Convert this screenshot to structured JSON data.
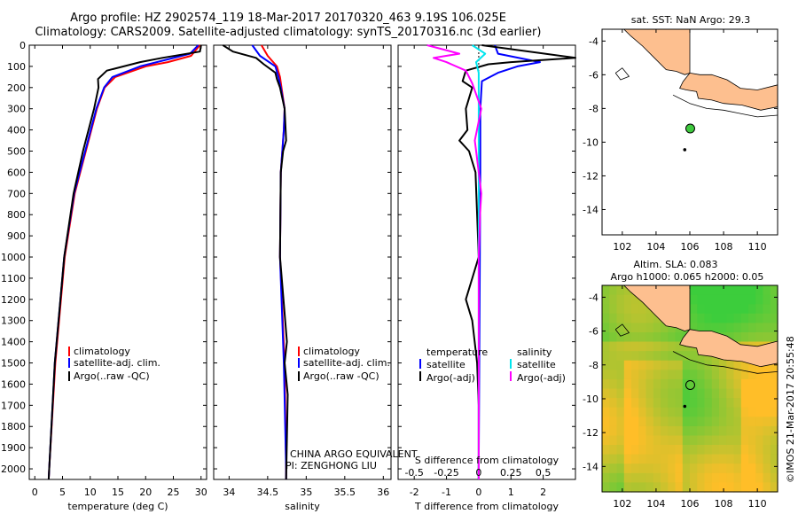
{
  "title": {
    "line1": "Argo profile: HZ 2902574_119 18-Mar-2017 20170320_463 9.19S 106.025E",
    "line2": "Climatology: CARS2009. Satellite-adjusted climatology: synTS_20170316.nc (3d earlier)"
  },
  "side_label": "©IMOS 21-Mar-2017 20:55:48",
  "colors": {
    "climatology": "#ff0000",
    "satellite": "#0000ff",
    "argo": "#000000",
    "sat_salinity": "#00e5ee",
    "argo_salinity": "#ff00ff",
    "land": "#fdbf8f",
    "argo_marker": "#3ec93e"
  },
  "chart_data": [
    {
      "type": "line",
      "xlabel": "temperature (deg C)",
      "ylim": [
        2050,
        0
      ],
      "xlim": [
        -1,
        31
      ],
      "yticks": [
        0,
        100,
        200,
        300,
        400,
        500,
        600,
        700,
        800,
        900,
        1000,
        1100,
        1200,
        1300,
        1400,
        1500,
        1600,
        1700,
        1800,
        1900,
        2000
      ],
      "xticks": [
        0,
        5,
        10,
        15,
        20,
        25,
        30
      ],
      "legend": [
        "climatology",
        "satellite-adj. clim.",
        "Argo(..raw -QC)"
      ],
      "series": [
        {
          "name": "climatology",
          "depth": [
            0,
            50,
            80,
            100,
            150,
            200,
            300,
            500,
            700,
            1000,
            1500,
            2000,
            2050
          ],
          "values": [
            29.8,
            28.2,
            24,
            20,
            14.5,
            12.6,
            11.2,
            9.2,
            7.2,
            5.4,
            3.7,
            2.6,
            2.5
          ]
        },
        {
          "name": "satellite-adj. clim.",
          "depth": [
            0,
            40,
            80,
            100,
            150,
            200,
            300,
            500,
            700,
            1000,
            1500,
            2000,
            2050
          ],
          "values": [
            29.5,
            28,
            22,
            19,
            14,
            12.5,
            11.1,
            9.1,
            7.1,
            5.3,
            3.6,
            2.6,
            2.5
          ]
        },
        {
          "name": "Argo(..raw -QC)",
          "depth": [
            0,
            30,
            60,
            80,
            120,
            160,
            200,
            300,
            500,
            700,
            1000,
            1500,
            2000,
            2050
          ],
          "values": [
            30,
            29.8,
            23,
            19,
            13,
            11.4,
            11.5,
            10.7,
            8.7,
            7,
            5.3,
            3.6,
            2.6,
            2.5
          ]
        }
      ]
    },
    {
      "type": "line",
      "xlabel": "salinity",
      "ylim": [
        2050,
        0
      ],
      "xlim": [
        33.8,
        36.1
      ],
      "xticks": [
        34,
        34.5,
        35,
        35.5,
        36
      ],
      "legend": [
        "climatology",
        "satellite-adj. clim.",
        "Argo(..raw -QC)"
      ],
      "annotation": [
        "CHINA ARGO EQUIVALENT",
        "PI: ZENGHONG LIU"
      ],
      "series": [
        {
          "name": "climatology",
          "depth": [
            0,
            50,
            100,
            150,
            200,
            300,
            400,
            600,
            1000,
            1500,
            2000,
            2050
          ],
          "values": [
            34.42,
            34.5,
            34.62,
            34.66,
            34.68,
            34.72,
            34.71,
            34.67,
            34.66,
            34.72,
            34.74,
            34.74
          ]
        },
        {
          "name": "satellite-adj. clim.",
          "depth": [
            0,
            50,
            100,
            150,
            200,
            300,
            400,
            600,
            1000,
            1500,
            2000,
            2050
          ],
          "values": [
            34.3,
            34.4,
            34.6,
            34.64,
            34.67,
            34.72,
            34.71,
            34.67,
            34.66,
            34.71,
            34.74,
            34.74
          ]
        },
        {
          "name": "Argo(..raw -QC)",
          "depth": [
            0,
            30,
            60,
            90,
            130,
            160,
            200,
            300,
            450,
            500,
            600,
            1000,
            1400,
            1500,
            1650,
            2050
          ],
          "values": [
            33.92,
            34.05,
            34.35,
            34.45,
            34.6,
            34.62,
            34.66,
            34.72,
            34.74,
            34.7,
            34.67,
            34.66,
            34.75,
            34.72,
            34.76,
            34.74
          ]
        }
      ]
    },
    {
      "type": "line",
      "xlabel": "T difference from climatology",
      "xlabel_top": "S difference from climatology",
      "ylim": [
        2050,
        0
      ],
      "xlim": [
        -2.5,
        3
      ],
      "xticks": [
        -2,
        -1,
        0,
        1,
        2
      ],
      "xticks_top": [
        "-0.5",
        "-0.25",
        "0",
        "0.25",
        "0.5"
      ],
      "legend_left": {
        "title": "temperature",
        "items": [
          "satellite",
          "Argo(-adj)"
        ]
      },
      "legend_right": {
        "title": "salinity",
        "items": [
          "satellite",
          "Argo(-adj)"
        ]
      },
      "series": [
        {
          "name": "satellite",
          "depth": [
            0,
            40,
            80,
            100,
            130,
            170,
            300,
            600,
            2000,
            2050
          ],
          "values": [
            0.5,
            0.6,
            1.9,
            1.2,
            0.6,
            0.1,
            0.05,
            0.05,
            0,
            0
          ]
        },
        {
          "name": "Argo(-adj)",
          "depth": [
            0,
            60,
            80,
            90,
            120,
            170,
            200,
            300,
            400,
            450,
            500,
            600,
            1000,
            1200,
            1300,
            1500,
            1700,
            2050
          ],
          "values": [
            0.1,
            3,
            1,
            0.3,
            -0.4,
            -0.5,
            -0.2,
            -0.4,
            -0.35,
            -0.6,
            -0.3,
            -0.1,
            0,
            -0.4,
            -0.2,
            -0.05,
            0,
            0
          ]
        },
        {
          "name": "satellite",
          "depth": [
            0,
            40,
            80,
            130,
            200,
            600,
            2000,
            2050
          ],
          "values": [
            -0.05,
            0.05,
            -0.02,
            0,
            0,
            0,
            0,
            0
          ]
        },
        {
          "name": "Argo(-adj)",
          "depth": [
            0,
            40,
            60,
            80,
            120,
            180,
            300,
            450,
            500,
            700,
            800,
            1000,
            1500,
            2050
          ],
          "values": [
            -0.4,
            -0.15,
            -0.35,
            -0.25,
            -0.1,
            -0.05,
            0.02,
            -0.03,
            -0.02,
            0.02,
            0.01,
            0,
            0,
            0
          ]
        }
      ]
    },
    {
      "type": "map",
      "title": "sat. SST: NaN Argo: 29.3",
      "xticks": [
        102,
        104,
        106,
        108,
        110
      ],
      "yticks": [
        -4,
        -6,
        -8,
        -10,
        -12,
        -14
      ],
      "xlim": [
        100.8,
        111.2
      ],
      "ylim": [
        -15.5,
        -3.3
      ],
      "argo_position": [
        106.025,
        -9.19
      ]
    },
    {
      "type": "heatmap",
      "title_lines": [
        "Altim. SLA: 0.083",
        "Argo h1000: 0.065 h2000: 0.05"
      ],
      "xticks": [
        102,
        104,
        106,
        108,
        110
      ],
      "yticks": [
        -4,
        -6,
        -8,
        -10,
        -12,
        -14
      ],
      "xlim": [
        100.8,
        111.2
      ],
      "ylim": [
        -15.5,
        -3.3
      ],
      "argo_position": [
        106.025,
        -9.19
      ]
    }
  ]
}
